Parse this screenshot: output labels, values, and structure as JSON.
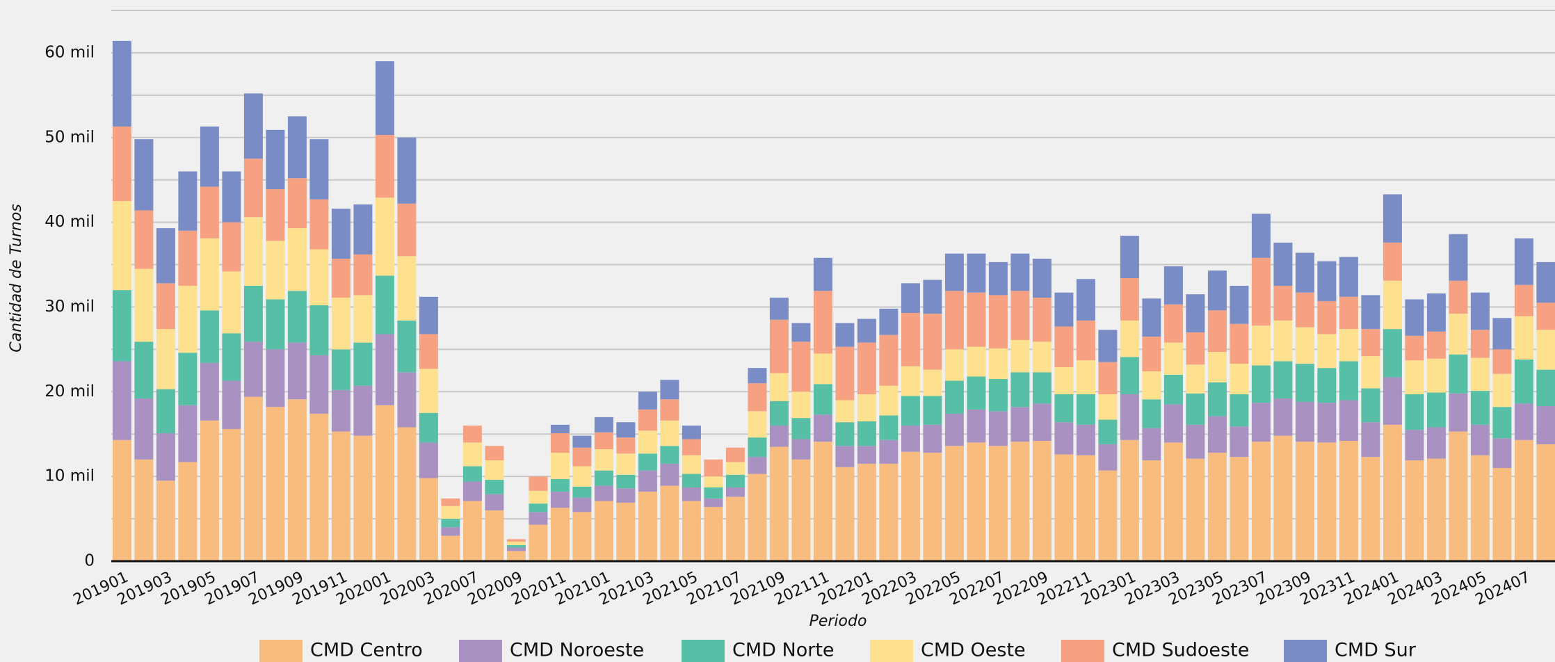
{
  "chart_data": {
    "type": "stacked_bar",
    "y_axis_title": "Cantidad de Turnos",
    "x_axis_title": "Periodo",
    "categories": [
      "201901",
      null,
      "201903",
      null,
      "201905",
      null,
      "201907",
      null,
      "201909",
      null,
      "201911",
      null,
      "202001",
      null,
      "202003",
      null,
      "202007",
      null,
      "202009",
      null,
      "202011",
      null,
      "202101",
      null,
      "202103",
      null,
      "202105",
      null,
      "202107",
      null,
      "202109",
      null,
      "202111",
      null,
      "202201",
      null,
      "202203",
      null,
      "202205",
      null,
      "202207",
      null,
      "202209",
      null,
      "202211",
      null,
      "202301",
      null,
      "202303",
      null,
      "202305",
      null,
      "202307",
      null,
      "202309",
      null,
      "202311",
      null,
      "202401",
      null,
      "202403",
      null,
      "202405",
      null,
      "202407",
      null
    ],
    "series": [
      {
        "name": "CMD Centro",
        "color": "#f9bc7f",
        "values": [
          14300,
          12000,
          9500,
          11700,
          16600,
          15600,
          19400,
          18200,
          19100,
          17400,
          15300,
          14800,
          18400,
          15800,
          9800,
          3000,
          7100,
          6000,
          1200,
          4300,
          6300,
          5800,
          7100,
          6900,
          8200,
          8900,
          7100,
          6400,
          7600,
          10300,
          13500,
          12000,
          14100,
          11100,
          11500,
          11500,
          12900,
          12800,
          13600,
          14000,
          13600,
          14100,
          14200,
          12600,
          12500,
          10700,
          14300,
          11900,
          14000,
          12100,
          12800,
          12300,
          14100,
          14800,
          14100,
          14000,
          14200,
          12300,
          16100,
          11900,
          12100,
          15300,
          12500,
          11000,
          14300,
          13800
        ]
      },
      {
        "name": "CMD Noroeste",
        "color": "#a991c1",
        "values": [
          9300,
          7200,
          5600,
          6700,
          6800,
          5700,
          6500,
          6800,
          6700,
          6900,
          4900,
          5900,
          8400,
          6500,
          4200,
          1000,
          2300,
          1900,
          400,
          1500,
          1900,
          1700,
          1800,
          1700,
          2500,
          2600,
          1600,
          1000,
          1100,
          2000,
          2500,
          2400,
          3200,
          2500,
          2100,
          2800,
          3100,
          3300,
          3800,
          3900,
          4100,
          4100,
          4400,
          3800,
          3600,
          3100,
          5400,
          3800,
          4500,
          4000,
          4300,
          3600,
          4600,
          4400,
          4700,
          4700,
          4800,
          4100,
          5600,
          3600,
          3700,
          4500,
          3600,
          3500,
          4300,
          4500
        ]
      },
      {
        "name": "CMD Norte",
        "color": "#58bfa7",
        "values": [
          8400,
          6700,
          5200,
          6200,
          6200,
          5600,
          6600,
          5900,
          6100,
          5900,
          4800,
          5100,
          6900,
          6100,
          3500,
          1000,
          1800,
          1700,
          300,
          1000,
          1500,
          1300,
          1800,
          1600,
          2000,
          2100,
          1600,
          1300,
          1500,
          2300,
          2900,
          2500,
          3600,
          2800,
          2900,
          2900,
          3500,
          3400,
          3900,
          3900,
          3800,
          4100,
          3700,
          3300,
          3600,
          2900,
          4400,
          3400,
          3500,
          3700,
          4000,
          3800,
          4400,
          4400,
          4500,
          4100,
          4600,
          4000,
          5700,
          4200,
          4100,
          4600,
          4000,
          3700,
          5200,
          4300
        ]
      },
      {
        "name": "CMD Oeste",
        "color": "#fde18f",
        "values": [
          10500,
          8600,
          7100,
          7900,
          8500,
          7300,
          8100,
          6900,
          7400,
          6600,
          6100,
          5600,
          9200,
          7600,
          5200,
          1500,
          2800,
          2300,
          400,
          1500,
          3100,
          2400,
          2500,
          2500,
          2700,
          3000,
          2200,
          1300,
          1500,
          3100,
          3300,
          3100,
          3600,
          2600,
          3200,
          3500,
          3500,
          3100,
          3700,
          3500,
          3600,
          3800,
          3600,
          3200,
          4000,
          3000,
          4300,
          3300,
          3800,
          3400,
          3600,
          3600,
          4700,
          4800,
          4300,
          4000,
          3800,
          3800,
          5700,
          4000,
          4000,
          4800,
          3900,
          3900,
          5100,
          4700
        ]
      },
      {
        "name": "CMD Sudoeste",
        "color": "#f6a282",
        "values": [
          8800,
          6900,
          5400,
          6500,
          6100,
          5800,
          6900,
          6100,
          5900,
          5900,
          4600,
          4800,
          7400,
          6200,
          4100,
          900,
          2000,
          1700,
          300,
          1700,
          2300,
          2200,
          2000,
          1900,
          2500,
          2500,
          1900,
          2000,
          1700,
          3300,
          6300,
          5900,
          7400,
          6300,
          6100,
          6000,
          6300,
          6600,
          6900,
          6400,
          6300,
          5800,
          5200,
          4800,
          4700,
          3800,
          5000,
          4100,
          4500,
          3800,
          4900,
          4700,
          8000,
          4100,
          4100,
          3900,
          3800,
          3200,
          4500,
          2900,
          3200,
          3900,
          3300,
          2900,
          3700,
          3200
        ]
      },
      {
        "name": "CMD Sur",
        "color": "#7a8cc5",
        "values": [
          10100,
          8400,
          6500,
          7000,
          7100,
          6000,
          7700,
          7000,
          7300,
          7100,
          5900,
          5900,
          8700,
          7800,
          4400,
          0,
          0,
          0,
          0,
          0,
          1000,
          1400,
          1800,
          1800,
          2100,
          2300,
          1600,
          0,
          0,
          1800,
          2600,
          2200,
          3900,
          2800,
          2800,
          3100,
          3500,
          4000,
          4400,
          4600,
          3900,
          4400,
          4600,
          4000,
          4900,
          3800,
          5000,
          4500,
          4500,
          4500,
          4700,
          4500,
          5200,
          5100,
          4700,
          4700,
          4700,
          4000,
          5700,
          4300,
          4500,
          5500,
          4400,
          3700,
          5500,
          4800
        ]
      }
    ],
    "ylim": [
      0,
      65000
    ],
    "yticks": [
      {
        "value": 0,
        "label": "0"
      },
      {
        "value": 10000,
        "label": "10 mil"
      },
      {
        "value": 20000,
        "label": "20 mil"
      },
      {
        "value": 30000,
        "label": "30 mil"
      },
      {
        "value": 40000,
        "label": "40 mil"
      },
      {
        "value": 50000,
        "label": "50 mil"
      },
      {
        "value": 60000,
        "label": "60 mil"
      }
    ],
    "y_minor_ticks": [
      5000,
      15000,
      25000,
      35000,
      45000,
      55000,
      65000
    ],
    "grid": true,
    "legend": "bottom"
  }
}
